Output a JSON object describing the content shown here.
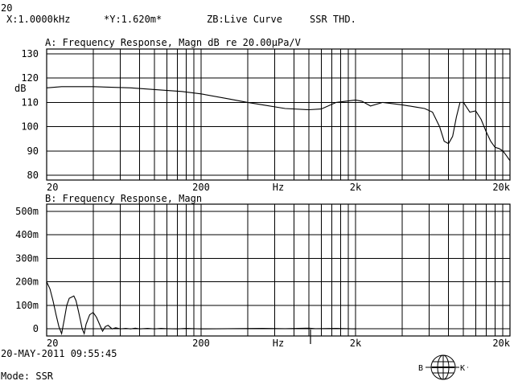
{
  "header": {
    "channel": "20",
    "cursor_x": "X:1.0000kHz",
    "cursor_y": "*Y:1.620m*",
    "zb_mode": "ZB:Live Curve",
    "measurement": "SSR THD."
  },
  "footer": {
    "timestamp": "20-MAY-2011 09:55:45",
    "mode": "Mode: SSR",
    "logo_left": "B",
    "logo_right": "K"
  },
  "chart_data": [
    {
      "type": "line",
      "title": "A: Frequency Response, Magn dB re 20.00µPa/V",
      "ylabel": "dB",
      "xlabel": "Hz",
      "x_scale": "log",
      "xlim": [
        20,
        20000
      ],
      "ylim": [
        78,
        132
      ],
      "x_ticks": [
        "20",
        "200",
        "2k",
        "20k"
      ],
      "y_ticks": [
        {
          "value": 130,
          "label": "130"
        },
        {
          "value": 120,
          "label": "120"
        },
        {
          "value": 110,
          "label": "110"
        },
        {
          "value": 100,
          "label": "100"
        },
        {
          "value": 90,
          "label": "90"
        },
        {
          "value": 80,
          "label": "80"
        }
      ],
      "grid": true,
      "series": [
        {
          "x": [
            20,
            25,
            30,
            40,
            50,
            70,
            100,
            150,
            200,
            300,
            400,
            500,
            700,
            1000,
            1200,
            1500,
            2000,
            2200,
            2500,
            3000,
            4000,
            5000,
            5600,
            6300,
            7000,
            7500,
            8000,
            8500,
            9000,
            9500,
            10000,
            11000,
            12000,
            13000,
            14000,
            15000,
            16000,
            17000,
            18000,
            19000,
            20000
          ],
          "y": [
            116,
            116.5,
            116.5,
            116.5,
            116.3,
            116,
            115.3,
            114.5,
            113.5,
            111.5,
            110,
            109,
            107.5,
            107,
            107.3,
            110,
            111,
            110.5,
            108.5,
            110,
            109,
            108,
            107.5,
            106,
            100,
            94,
            93,
            96,
            104,
            110,
            110,
            106,
            106.5,
            103,
            98,
            94,
            91.5,
            91,
            90,
            88,
            86
          ]
        }
      ]
    },
    {
      "type": "line",
      "title": "B: Frequency Response, Magn",
      "ylabel": "",
      "xlabel": "Hz",
      "x_scale": "log",
      "xlim": [
        20,
        20000
      ],
      "ylim": [
        -0.03,
        0.53
      ],
      "x_ticks": [
        "20",
        "200",
        "2k",
        "20k"
      ],
      "y_ticks": [
        {
          "value": 0.5,
          "label": "500m"
        },
        {
          "value": 0.4,
          "label": "400m"
        },
        {
          "value": 0.3,
          "label": "300m"
        },
        {
          "value": 0.2,
          "label": "200m"
        },
        {
          "value": 0.1,
          "label": "100m"
        },
        {
          "value": 0.0,
          "label": "0"
        }
      ],
      "grid": true,
      "series": [
        {
          "x": [
            20,
            21,
            22,
            23,
            24,
            25,
            26,
            27,
            28,
            30,
            31,
            32,
            33,
            34,
            35,
            36,
            38,
            40,
            42,
            44,
            46,
            48,
            50,
            53,
            56,
            60,
            65,
            70,
            75,
            80,
            90,
            100,
            110,
            120,
            140,
            160,
            180,
            200,
            300,
            500,
            700,
            1000,
            1100,
            1500,
            2000
          ],
          "y": [
            0.2,
            0.17,
            0.12,
            0.06,
            0.01,
            -0.02,
            0.04,
            0.1,
            0.13,
            0.14,
            0.12,
            0.08,
            0.04,
            0.0,
            -0.02,
            0.02,
            0.06,
            0.07,
            0.05,
            0.02,
            -0.01,
            0.01,
            0.015,
            0.0,
            0.005,
            0.0,
            0.002,
            0.0,
            0.003,
            0.0,
            0.002,
            0.0,
            0.002,
            0.001,
            0.0,
            0.002,
            0.001,
            0.0,
            0.001,
            0.002,
            0.001,
            0.003,
            0.001,
            0.002,
            0.0
          ]
        }
      ]
    }
  ]
}
